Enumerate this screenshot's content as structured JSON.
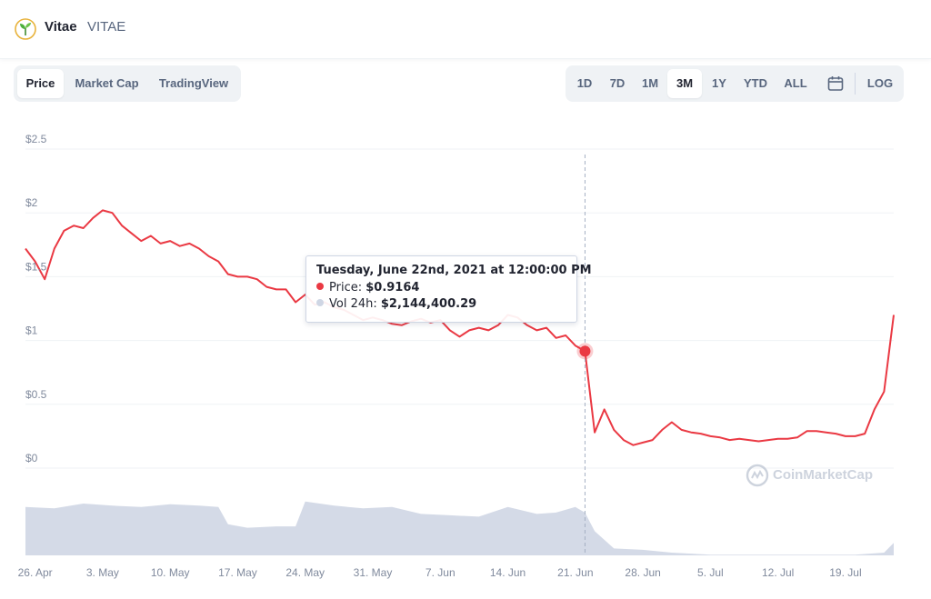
{
  "header": {
    "name": "Vitae",
    "symbol": "VITAE",
    "logo_icon": "vitae-leaf-icon"
  },
  "tabs": [
    {
      "label": "Price",
      "active": true
    },
    {
      "label": "Market Cap",
      "active": false
    },
    {
      "label": "TradingView",
      "active": false
    }
  ],
  "ranges": [
    {
      "label": "1D",
      "active": false
    },
    {
      "label": "7D",
      "active": false
    },
    {
      "label": "1M",
      "active": false
    },
    {
      "label": "3M",
      "active": true
    },
    {
      "label": "1Y",
      "active": false
    },
    {
      "label": "YTD",
      "active": false
    },
    {
      "label": "ALL",
      "active": false
    }
  ],
  "calendar_icon": "calendar-icon",
  "log_label": "LOG",
  "tooltip": {
    "title": "Tuesday, June 22nd, 2021 at 12:00:00 PM",
    "price_label": "Price:",
    "price_value": "$0.9164",
    "vol_label": "Vol 24h:",
    "vol_value": "$2,144,400.29"
  },
  "watermark": "CoinMarketCap",
  "colors": {
    "price_line": "#ea3943",
    "volume_fill": "#cfd6e4",
    "grid": "#eff2f5",
    "axis_text": "#808a9d"
  },
  "chart_data": {
    "type": "line",
    "y_axis": {
      "range": [
        0,
        2.5
      ],
      "ticks": [
        0,
        0.5,
        1,
        1.5,
        2,
        2.5
      ],
      "tick_labels": [
        "$0",
        "$0.5",
        "$1",
        "$1.5",
        "$2",
        "$2.5"
      ]
    },
    "x_axis": {
      "range": [
        "2021-04-25",
        "2021-07-24"
      ],
      "ticks": [
        "2021-04-26",
        "2021-05-03",
        "2021-05-10",
        "2021-05-17",
        "2021-05-24",
        "2021-05-31",
        "2021-06-07",
        "2021-06-14",
        "2021-06-21",
        "2021-06-28",
        "2021-07-05",
        "2021-07-12",
        "2021-07-19"
      ],
      "tick_labels": [
        "26. Apr",
        "3. May",
        "10. May",
        "17. May",
        "24. May",
        "31. May",
        "7. Jun",
        "14. Jun",
        "21. Jun",
        "28. Jun",
        "5. Jul",
        "12. Jul",
        "19. Jul"
      ]
    },
    "price_series": {
      "points": [
        [
          "2021-04-25",
          1.72
        ],
        [
          "2021-04-26",
          1.62
        ],
        [
          "2021-04-27",
          1.48
        ],
        [
          "2021-04-28",
          1.72
        ],
        [
          "2021-04-29",
          1.86
        ],
        [
          "2021-04-30",
          1.9
        ],
        [
          "2021-05-01",
          1.88
        ],
        [
          "2021-05-02",
          1.96
        ],
        [
          "2021-05-03",
          2.02
        ],
        [
          "2021-05-04",
          2.0
        ],
        [
          "2021-05-05",
          1.9
        ],
        [
          "2021-05-06",
          1.84
        ],
        [
          "2021-05-07",
          1.78
        ],
        [
          "2021-05-08",
          1.82
        ],
        [
          "2021-05-09",
          1.76
        ],
        [
          "2021-05-10",
          1.78
        ],
        [
          "2021-05-11",
          1.74
        ],
        [
          "2021-05-12",
          1.76
        ],
        [
          "2021-05-13",
          1.72
        ],
        [
          "2021-05-14",
          1.66
        ],
        [
          "2021-05-15",
          1.62
        ],
        [
          "2021-05-16",
          1.52
        ],
        [
          "2021-05-17",
          1.5
        ],
        [
          "2021-05-18",
          1.5
        ],
        [
          "2021-05-19",
          1.48
        ],
        [
          "2021-05-20",
          1.42
        ],
        [
          "2021-05-21",
          1.4
        ],
        [
          "2021-05-22",
          1.4
        ],
        [
          "2021-05-23",
          1.3
        ],
        [
          "2021-05-24",
          1.36
        ],
        [
          "2021-05-25",
          1.28
        ],
        [
          "2021-05-26",
          1.3
        ],
        [
          "2021-05-27",
          1.26
        ],
        [
          "2021-05-28",
          1.24
        ],
        [
          "2021-05-29",
          1.2
        ],
        [
          "2021-05-30",
          1.16
        ],
        [
          "2021-05-31",
          1.18
        ],
        [
          "2021-06-01",
          1.16
        ],
        [
          "2021-06-02",
          1.13
        ],
        [
          "2021-06-03",
          1.12
        ],
        [
          "2021-06-04",
          1.15
        ],
        [
          "2021-06-05",
          1.17
        ],
        [
          "2021-06-06",
          1.14
        ],
        [
          "2021-06-07",
          1.16
        ],
        [
          "2021-06-08",
          1.08
        ],
        [
          "2021-06-09",
          1.03
        ],
        [
          "2021-06-10",
          1.08
        ],
        [
          "2021-06-11",
          1.1
        ],
        [
          "2021-06-12",
          1.08
        ],
        [
          "2021-06-13",
          1.12
        ],
        [
          "2021-06-14",
          1.2
        ],
        [
          "2021-06-15",
          1.18
        ],
        [
          "2021-06-16",
          1.12
        ],
        [
          "2021-06-17",
          1.08
        ],
        [
          "2021-06-18",
          1.1
        ],
        [
          "2021-06-19",
          1.02
        ],
        [
          "2021-06-20",
          1.04
        ],
        [
          "2021-06-21",
          0.96
        ],
        [
          "2021-06-22",
          0.9164
        ],
        [
          "2021-06-23",
          0.28
        ],
        [
          "2021-06-24",
          0.46
        ],
        [
          "2021-06-25",
          0.3
        ],
        [
          "2021-06-26",
          0.22
        ],
        [
          "2021-06-27",
          0.18
        ],
        [
          "2021-06-28",
          0.2
        ],
        [
          "2021-06-29",
          0.22
        ],
        [
          "2021-06-30",
          0.3
        ],
        [
          "2021-07-01",
          0.36
        ],
        [
          "2021-07-02",
          0.3
        ],
        [
          "2021-07-03",
          0.28
        ],
        [
          "2021-07-04",
          0.27
        ],
        [
          "2021-07-05",
          0.25
        ],
        [
          "2021-07-06",
          0.24
        ],
        [
          "2021-07-07",
          0.22
        ],
        [
          "2021-07-08",
          0.23
        ],
        [
          "2021-07-09",
          0.22
        ],
        [
          "2021-07-10",
          0.21
        ],
        [
          "2021-07-11",
          0.22
        ],
        [
          "2021-07-12",
          0.23
        ],
        [
          "2021-07-13",
          0.23
        ],
        [
          "2021-07-14",
          0.24
        ],
        [
          "2021-07-15",
          0.29
        ],
        [
          "2021-07-16",
          0.29
        ],
        [
          "2021-07-17",
          0.28
        ],
        [
          "2021-07-18",
          0.27
        ],
        [
          "2021-07-19",
          0.25
        ],
        [
          "2021-07-20",
          0.25
        ],
        [
          "2021-07-21",
          0.27
        ],
        [
          "2021-07-22",
          0.46
        ],
        [
          "2021-07-23",
          0.6
        ],
        [
          "2021-07-24",
          1.2
        ]
      ]
    },
    "volume_series": {
      "points": [
        [
          "2021-04-25",
          0.7
        ],
        [
          "2021-04-28",
          0.68
        ],
        [
          "2021-05-01",
          0.75
        ],
        [
          "2021-05-04",
          0.72
        ],
        [
          "2021-05-07",
          0.7
        ],
        [
          "2021-05-10",
          0.74
        ],
        [
          "2021-05-13",
          0.72
        ],
        [
          "2021-05-15",
          0.7
        ],
        [
          "2021-05-16",
          0.45
        ],
        [
          "2021-05-18",
          0.4
        ],
        [
          "2021-05-21",
          0.42
        ],
        [
          "2021-05-23",
          0.42
        ],
        [
          "2021-05-24",
          0.78
        ],
        [
          "2021-05-27",
          0.72
        ],
        [
          "2021-05-30",
          0.68
        ],
        [
          "2021-06-02",
          0.7
        ],
        [
          "2021-06-05",
          0.6
        ],
        [
          "2021-06-08",
          0.58
        ],
        [
          "2021-06-11",
          0.56
        ],
        [
          "2021-06-14",
          0.7
        ],
        [
          "2021-06-17",
          0.6
        ],
        [
          "2021-06-19",
          0.62
        ],
        [
          "2021-06-21",
          0.7
        ],
        [
          "2021-06-22",
          0.62
        ],
        [
          "2021-06-23",
          0.35
        ],
        [
          "2021-06-25",
          0.1
        ],
        [
          "2021-06-28",
          0.08
        ],
        [
          "2021-07-01",
          0.04
        ],
        [
          "2021-07-05",
          0.01
        ],
        [
          "2021-07-12",
          0.01
        ],
        [
          "2021-07-20",
          0.01
        ],
        [
          "2021-07-23",
          0.04
        ],
        [
          "2021-07-24",
          0.18
        ]
      ]
    },
    "hover": {
      "date": "2021-06-22",
      "price": 0.9164
    }
  }
}
